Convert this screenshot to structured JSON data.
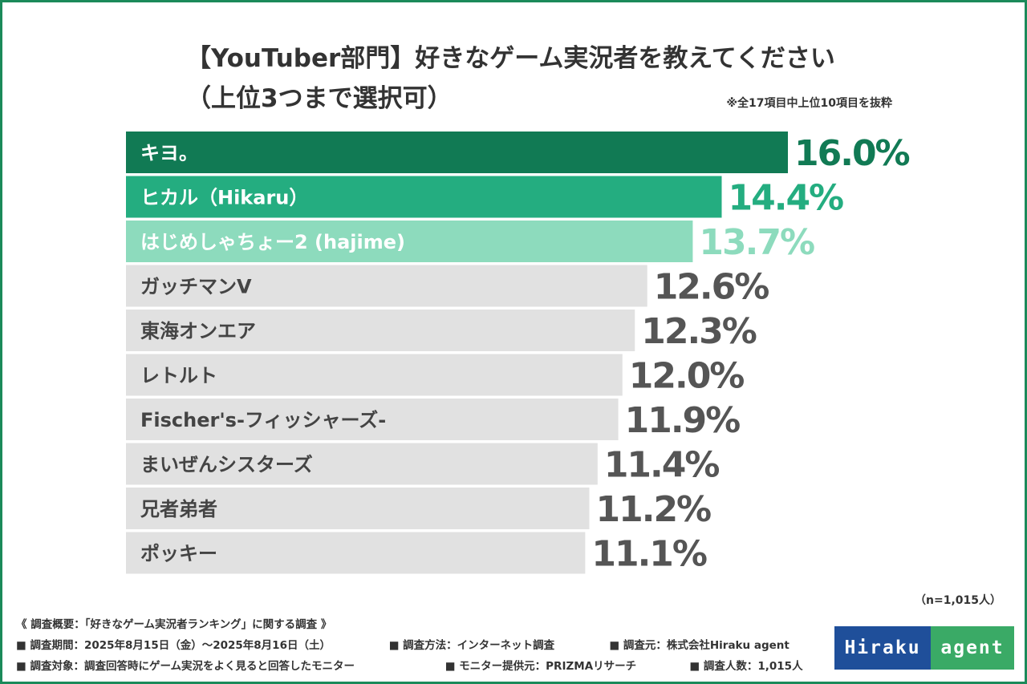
{
  "title_line1": "【YouTuber部門】好きなゲーム実況者を教えてください",
  "title_line2": "（上位3つまで選択可）",
  "note_top": "※全17項目中上位10項目を抜粋",
  "sample_note": "（n=1,015人）",
  "colors": {
    "rank1": "#117a54",
    "rank2": "#24ad80",
    "rank3": "#8ddbbd",
    "other": "#e1e1e1",
    "label_light": "#ffffff",
    "label_dark": "#444444",
    "value_other": "#555555",
    "frame": "#1b8a5a"
  },
  "chart_data": {
    "type": "bar",
    "orientation": "horizontal",
    "unit": "%",
    "categories": [
      "キヨ。",
      "ヒカル（Hikaru）",
      "はじめしゃちょー2 (hajime)",
      "ガッチマンV",
      "東海オンエア",
      "レトルト",
      "Fischer's-フィッシャーズ-",
      "まいぜんシスターズ",
      "兄者弟者",
      "ポッキー"
    ],
    "values": [
      16.0,
      14.4,
      13.7,
      12.6,
      12.3,
      12.0,
      11.9,
      11.4,
      11.2,
      11.1
    ],
    "value_labels": [
      "16.0%",
      "14.4%",
      "13.7%",
      "12.6%",
      "12.3%",
      "12.0%",
      "11.9%",
      "11.4%",
      "11.2%",
      "11.1%"
    ],
    "grid": false,
    "legend": "none"
  },
  "footer": {
    "summary": "《 調査概要：「好きなゲーム実況者ランキング」に関する調査 》",
    "period": "■ 調査期間：2025年8月15日（金）～2025年8月16日（土）",
    "method": "■ 調査方法：インターネット調査",
    "organizer": "■ 調査元：株式会社Hiraku agent",
    "target": "■ 調査対象：調査回答時にゲーム実況をよく見ると回答したモニター",
    "provider": "■ モニター提供元：PRIZMAリサーチ",
    "count": "■ 調査人数：1,015人"
  },
  "logo": {
    "part1": "Hiraku",
    "part2": "agent"
  }
}
